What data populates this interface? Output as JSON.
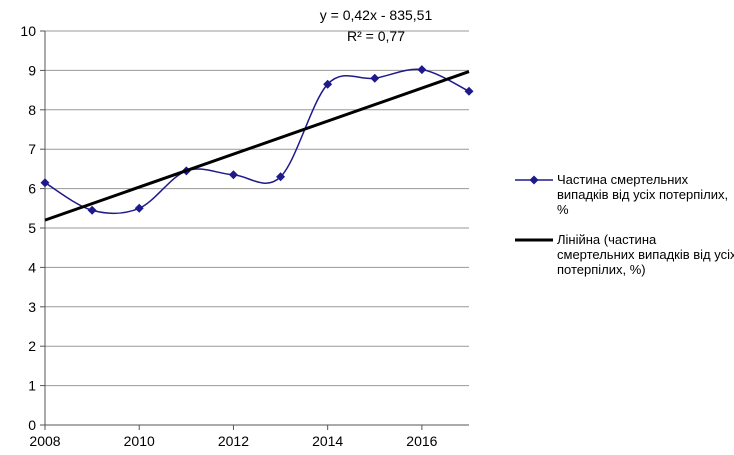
{
  "chart_data": {
    "type": "line",
    "annotations": [
      "y = 0,42x - 835,51",
      "R² = 0,77"
    ],
    "x": [
      2008,
      2009,
      2010,
      2011,
      2012,
      2013,
      2014,
      2015,
      2016,
      2017
    ],
    "series": [
      {
        "name": "Частина смертельних випадків від усіх потерпілих, %",
        "color": "#1f1a8c",
        "smooth": true,
        "marker": "diamond",
        "x": [
          2008,
          2009,
          2010,
          2011,
          2012,
          2013,
          2014,
          2015,
          2016,
          2017
        ],
        "values": [
          6.15,
          5.45,
          5.5,
          6.45,
          6.35,
          6.3,
          8.65,
          8.8,
          9.02,
          8.47
        ]
      },
      {
        "name": "Лінійна (частина смертельних випадків від усіх потерпілих, %)",
        "color": "#000000",
        "smooth": false,
        "marker": "none",
        "x": [
          2008,
          2017
        ],
        "values": [
          5.2,
          8.97
        ]
      }
    ],
    "xlim": [
      2008,
      2017
    ],
    "xticks": [
      2008,
      2010,
      2012,
      2014,
      2016
    ],
    "ylim": [
      0,
      10
    ],
    "yticks": [
      0,
      1,
      2,
      3,
      4,
      5,
      6,
      7,
      8,
      9,
      10
    ],
    "grid": true,
    "legend": "right"
  }
}
